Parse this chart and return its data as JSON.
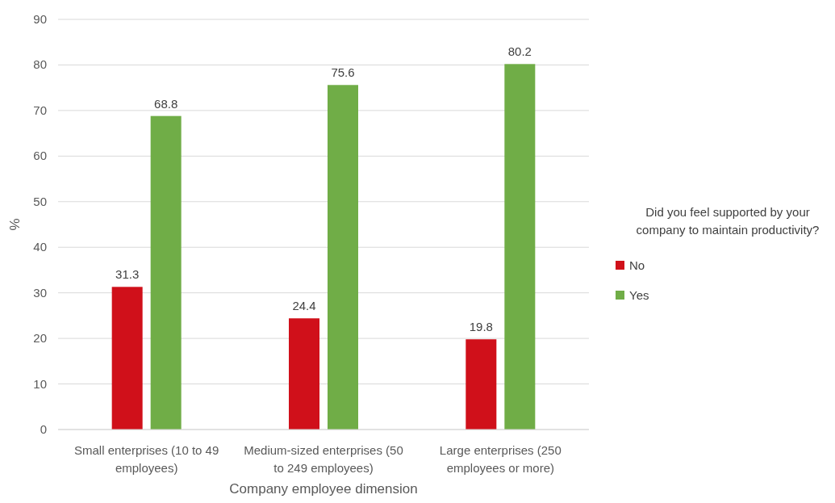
{
  "chart_data": {
    "type": "bar",
    "xlabel": "Company employee dimension",
    "ylabel": "%",
    "legend_title": "Did you feel supported by your company to maintain productivity?",
    "categories": [
      "Small enterprises (10 to 49 employees)",
      "Medium-sized enterprises (50 to 249 employees)",
      "Large enterprises (250 employees or more)"
    ],
    "series": [
      {
        "name": "No",
        "color": "#d0101a",
        "values": [
          31.3,
          24.4,
          19.8
        ]
      },
      {
        "name": "Yes",
        "color": "#70ad47",
        "values": [
          68.8,
          75.6,
          80.2
        ]
      }
    ],
    "ylim": [
      0,
      90
    ],
    "yticks": [
      0,
      10,
      20,
      30,
      40,
      50,
      60,
      70,
      80,
      90
    ],
    "grid": "y",
    "legend": "right",
    "data_labels": true
  }
}
